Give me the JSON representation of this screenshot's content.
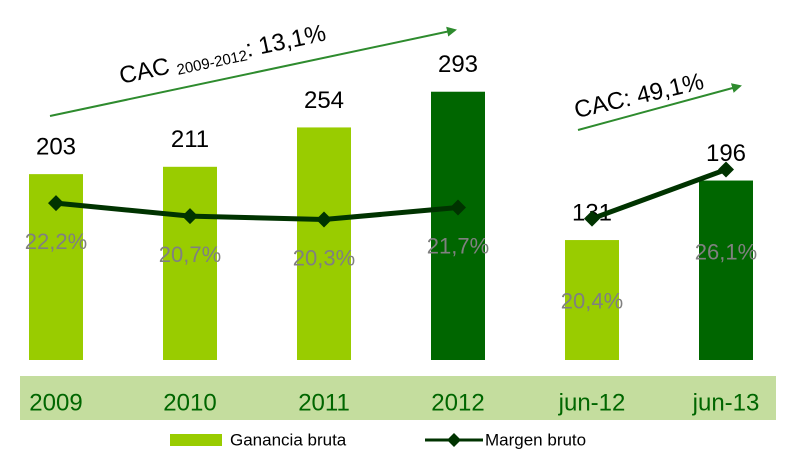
{
  "chart_data": {
    "type": "bar_line",
    "categories": [
      "2009",
      "2010",
      "2011",
      "2012",
      "jun-12",
      "jun-13"
    ],
    "series": [
      {
        "name": "Ganancia bruta",
        "type": "bar",
        "colors": [
          "#99cc00",
          "#99cc00",
          "#99cc00",
          "#006600",
          "#99cc00",
          "#006600"
        ],
        "color": "#99cc00",
        "values": [
          203,
          211,
          254,
          293,
          131,
          196
        ]
      },
      {
        "name": "Margen bruto",
        "type": "line",
        "axis": "y2",
        "color": "#003300",
        "values": [
          22.2,
          20.7,
          20.3,
          21.7,
          20.4,
          26.1
        ],
        "value_labels": [
          "22,2%",
          "20,7%",
          "20,3%",
          "21,7%",
          "20,4%",
          "26,1%"
        ],
        "line_gap_after": 3
      }
    ],
    "ylim": [
      0,
      320
    ],
    "y2lim": [
      4,
      38
    ],
    "annotations": [
      {
        "text": "CAC ",
        "sub": "2009-2012",
        "after": ": 13,1%"
      },
      {
        "text": "CAC: 49,1%"
      }
    ]
  }
}
